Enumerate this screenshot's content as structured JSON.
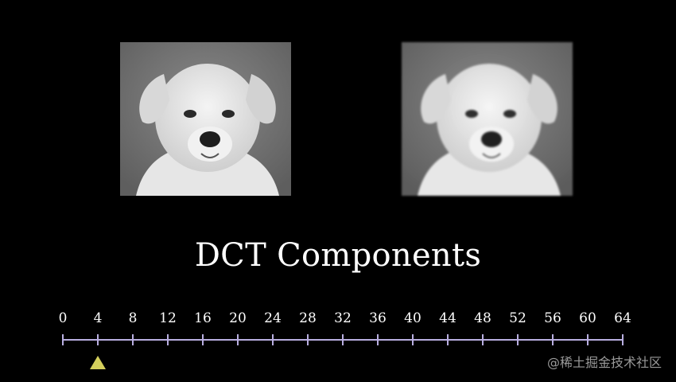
{
  "title": "DCT Components",
  "slider": {
    "min": 0,
    "max": 64,
    "step": 4,
    "tick_labels": [
      "0",
      "4",
      "8",
      "12",
      "16",
      "20",
      "24",
      "28",
      "32",
      "36",
      "40",
      "44",
      "48",
      "52",
      "56",
      "60",
      "64"
    ],
    "current_value": 4,
    "track_color": "#b8aee0",
    "marker_color": "#d4cf5c"
  },
  "images": {
    "left": "puppy-photo-original",
    "right": "puppy-photo-compressed"
  },
  "watermark": "@稀土掘金技术社区"
}
